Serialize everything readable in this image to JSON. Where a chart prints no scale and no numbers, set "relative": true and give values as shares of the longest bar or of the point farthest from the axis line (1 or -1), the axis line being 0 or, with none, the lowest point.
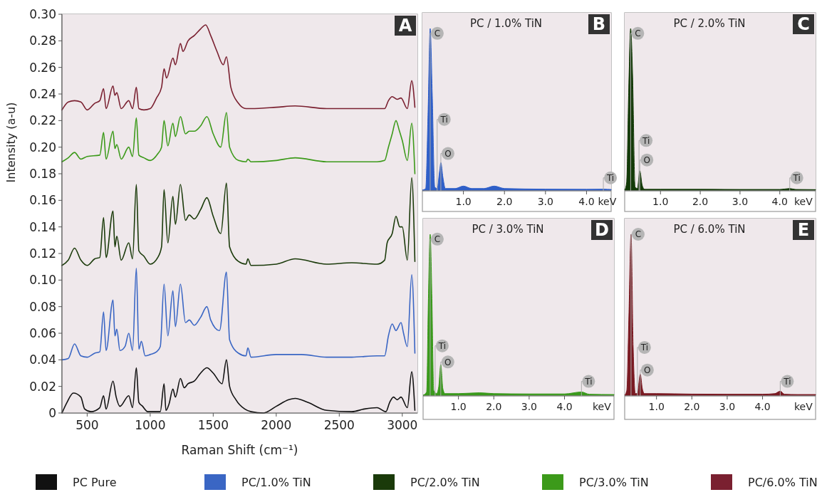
{
  "chart_data": [
    {
      "type": "line",
      "xlabel": "Raman Shift (cm⁻¹)",
      "ylabel": "Intensity (a-u)",
      "xlim": [
        300,
        3120
      ],
      "ylim": [
        0,
        0.3
      ],
      "xticks": [
        500,
        1000,
        1500,
        2000,
        2500,
        3000
      ],
      "yticks": [
        0,
        0.02,
        0.04,
        0.06,
        0.08,
        {
          "value": 0.1,
          "label": "0.10"
        },
        0.12,
        0.14,
        0.16,
        0.18,
        {
          "value": 0.2,
          "label": "0.20"
        },
        0.22,
        0.24,
        0.26,
        0.28,
        {
          "value": 0.3,
          "label": "0.30"
        }
      ],
      "legend": "bottom",
      "annotations": [
        "A"
      ],
      "series": [
        {
          "name": "PC Pure",
          "color": "#111111",
          "x": [
            300,
            340,
            390,
            450,
            480,
            530,
            600,
            630,
            650,
            705,
            730,
            760,
            830,
            860,
            890,
            910,
            940,
            980,
            1080,
            1110,
            1125,
            1150,
            1180,
            1200,
            1240,
            1270,
            1300,
            1350,
            1400,
            1450,
            1500,
            1570,
            1605,
            1630,
            1680,
            1750,
            1800,
            1900,
            2000,
            2100,
            2150,
            2250,
            2400,
            2600,
            2700,
            2800,
            2870,
            2900,
            2930,
            2960,
            2990,
            3040,
            3075,
            3100
          ],
          "values": [
            0,
            0.008,
            0.015,
            0.012,
            0.003,
            0.001,
            0.004,
            0.013,
            0.003,
            0.024,
            0.012,
            0.005,
            0.013,
            0.004,
            0.034,
            0.008,
            0.005,
            0.001,
            0.001,
            0.022,
            0.002,
            0.007,
            0.018,
            0.012,
            0.026,
            0.019,
            0.022,
            0.024,
            0.03,
            0.034,
            0.03,
            0.022,
            0.04,
            0.02,
            0.01,
            0.003,
            0.001,
            0,
            0.005,
            0.01,
            0.011,
            0.008,
            0.002,
            0.001,
            0.003,
            0.004,
            0.001,
            0.008,
            0.012,
            0.01,
            0.012,
            0.004,
            0.031,
            0.002
          ]
        },
        {
          "name": "PC/1.0% TiN",
          "color": "#3a66c4",
          "x": [
            300,
            350,
            400,
            450,
            500,
            560,
            600,
            630,
            650,
            705,
            720,
            735,
            760,
            800,
            830,
            860,
            890,
            910,
            930,
            960,
            1000,
            1050,
            1080,
            1110,
            1140,
            1180,
            1200,
            1240,
            1280,
            1310,
            1350,
            1400,
            1450,
            1480,
            1550,
            1605,
            1630,
            1700,
            1760,
            1775,
            1800,
            2000,
            2200,
            2400,
            2600,
            2800,
            2860,
            2890,
            2920,
            2950,
            2990,
            3010,
            3040,
            3075,
            3100
          ],
          "values": [
            0.04,
            0.041,
            0.052,
            0.043,
            0.042,
            0.045,
            0.046,
            0.076,
            0.047,
            0.085,
            0.058,
            0.063,
            0.047,
            0.05,
            0.06,
            0.047,
            0.109,
            0.048,
            0.054,
            0.043,
            0.044,
            0.046,
            0.05,
            0.097,
            0.058,
            0.092,
            0.065,
            0.097,
            0.068,
            0.07,
            0.066,
            0.072,
            0.08,
            0.07,
            0.062,
            0.106,
            0.055,
            0.045,
            0.043,
            0.049,
            0.042,
            0.044,
            0.044,
            0.042,
            0.042,
            0.043,
            0.043,
            0.058,
            0.067,
            0.062,
            0.068,
            0.06,
            0.05,
            0.104,
            0.045
          ]
        },
        {
          "name": "PC/2.0% TiN",
          "color": "#1a3a0a",
          "x": [
            300,
            350,
            400,
            450,
            500,
            560,
            600,
            630,
            650,
            705,
            720,
            735,
            770,
            830,
            860,
            890,
            910,
            950,
            1000,
            1060,
            1090,
            1110,
            1140,
            1180,
            1200,
            1240,
            1280,
            1310,
            1350,
            1400,
            1450,
            1500,
            1560,
            1605,
            1630,
            1700,
            1760,
            1775,
            1800,
            2000,
            2150,
            2400,
            2600,
            2800,
            2860,
            2880,
            2920,
            2950,
            2980,
            3000,
            3040,
            3075,
            3100
          ],
          "values": [
            0.111,
            0.115,
            0.124,
            0.115,
            0.111,
            0.116,
            0.117,
            0.147,
            0.117,
            0.152,
            0.125,
            0.133,
            0.115,
            0.128,
            0.116,
            0.172,
            0.122,
            0.118,
            0.112,
            0.117,
            0.125,
            0.168,
            0.128,
            0.163,
            0.142,
            0.172,
            0.145,
            0.149,
            0.146,
            0.153,
            0.162,
            0.148,
            0.135,
            0.173,
            0.125,
            0.114,
            0.112,
            0.116,
            0.111,
            0.112,
            0.116,
            0.112,
            0.113,
            0.112,
            0.115,
            0.128,
            0.135,
            0.148,
            0.14,
            0.14,
            0.115,
            0.177,
            0.114
          ]
        },
        {
          "name": "PC/3.0% TiN",
          "color": "#3c9a1a",
          "x": [
            300,
            350,
            400,
            450,
            500,
            600,
            630,
            650,
            705,
            720,
            735,
            770,
            830,
            860,
            890,
            910,
            950,
            1000,
            1060,
            1090,
            1110,
            1140,
            1180,
            1200,
            1240,
            1280,
            1310,
            1350,
            1400,
            1450,
            1500,
            1560,
            1605,
            1630,
            1700,
            1760,
            1775,
            1800,
            2000,
            2150,
            2400,
            2600,
            2800,
            2860,
            2890,
            2920,
            2950,
            2975,
            3000,
            3040,
            3075,
            3100
          ],
          "values": [
            0.189,
            0.192,
            0.196,
            0.191,
            0.193,
            0.194,
            0.211,
            0.191,
            0.212,
            0.199,
            0.202,
            0.191,
            0.2,
            0.193,
            0.222,
            0.194,
            0.192,
            0.19,
            0.195,
            0.2,
            0.22,
            0.201,
            0.218,
            0.208,
            0.223,
            0.21,
            0.212,
            0.212,
            0.216,
            0.223,
            0.21,
            0.2,
            0.226,
            0.2,
            0.19,
            0.189,
            0.191,
            0.189,
            0.19,
            0.192,
            0.189,
            0.189,
            0.189,
            0.19,
            0.2,
            0.21,
            0.22,
            0.213,
            0.205,
            0.19,
            0.218,
            0.18
          ]
        },
        {
          "name": "PC/6.0% TiN",
          "color": "#7a2030",
          "x": [
            300,
            350,
            400,
            450,
            500,
            560,
            600,
            630,
            650,
            705,
            720,
            735,
            770,
            830,
            860,
            890,
            910,
            950,
            1000,
            1050,
            1090,
            1110,
            1130,
            1180,
            1200,
            1240,
            1260,
            1300,
            1350,
            1400,
            1440,
            1480,
            1530,
            1580,
            1605,
            1640,
            1700,
            1760,
            1800,
            2000,
            2150,
            2400,
            2600,
            2800,
            2860,
            2890,
            2920,
            2960,
            2990,
            3040,
            3075,
            3100
          ],
          "values": [
            0.228,
            0.234,
            0.235,
            0.234,
            0.228,
            0.233,
            0.235,
            0.244,
            0.229,
            0.246,
            0.239,
            0.241,
            0.229,
            0.235,
            0.229,
            0.245,
            0.229,
            0.228,
            0.229,
            0.237,
            0.245,
            0.259,
            0.252,
            0.267,
            0.262,
            0.278,
            0.272,
            0.28,
            0.284,
            0.289,
            0.292,
            0.284,
            0.272,
            0.262,
            0.268,
            0.245,
            0.233,
            0.229,
            0.229,
            0.23,
            0.231,
            0.229,
            0.229,
            0.229,
            0.229,
            0.235,
            0.238,
            0.236,
            0.237,
            0.229,
            0.25,
            0.23
          ]
        }
      ]
    },
    {
      "type": "area",
      "title": "PC / 1.0% TiN",
      "xlabel": "keV",
      "relative": true,
      "xlim": [
        0,
        4.6
      ],
      "xticks": [
        {
          "value": 1,
          "label": "1.0"
        },
        {
          "value": 2,
          "label": "2.0"
        },
        {
          "value": 3,
          "label": "3.0"
        },
        {
          "value": 4,
          "label": "4.0"
        }
      ],
      "annotations": [
        "B"
      ],
      "ref_lines": [
        {
          "axis": "x",
          "value": 0.19,
          "label": "C"
        },
        {
          "axis": "x",
          "value": 0.36,
          "label": "Ti"
        },
        {
          "axis": "x",
          "value": 0.45,
          "label": "O"
        },
        {
          "axis": "x",
          "value": 4.41,
          "label": "Ti"
        }
      ],
      "series": [
        {
          "color": "#2f5fc8",
          "x": [
            0,
            0.08,
            0.14,
            0.19,
            0.24,
            0.3,
            0.36,
            0.42,
            0.45,
            0.5,
            0.56,
            0.8,
            1.0,
            1.2,
            1.5,
            1.75,
            2.0,
            3.0,
            4.0,
            4.41,
            4.6
          ],
          "values": [
            0,
            0.01,
            0.5,
            1.0,
            0.6,
            0.02,
            0.01,
            0.12,
            0.17,
            0.08,
            0.01,
            0.01,
            0.025,
            0.01,
            0.01,
            0.025,
            0.01,
            0.006,
            0.005,
            0.006,
            0.004
          ]
        }
      ]
    },
    {
      "type": "area",
      "title": "PC / 2.0% TiN",
      "xlabel": "keV",
      "relative": true,
      "xlim": [
        0.1,
        4.9
      ],
      "xticks": [
        {
          "value": 1,
          "label": "1.0"
        },
        {
          "value": 2,
          "label": "2.0"
        },
        {
          "value": 3,
          "label": "3.0"
        },
        {
          "value": 4,
          "label": "4.0"
        }
      ],
      "annotations": [
        "C"
      ],
      "ref_lines": [
        {
          "axis": "x",
          "value": 0.25,
          "label": "C"
        },
        {
          "axis": "x",
          "value": 0.46,
          "label": "Ti"
        },
        {
          "axis": "x",
          "value": 0.48,
          "label": "O"
        },
        {
          "axis": "x",
          "value": 4.25,
          "label": "Ti"
        }
      ],
      "series": [
        {
          "color": "#133a08",
          "x": [
            0.1,
            0.15,
            0.2,
            0.25,
            0.3,
            0.36,
            0.42,
            0.48,
            0.54,
            0.6,
            1.0,
            2.0,
            3.0,
            4.0,
            4.25,
            4.4,
            4.9
          ],
          "values": [
            0,
            0.05,
            0.6,
            1.0,
            0.7,
            0.02,
            0.01,
            0.12,
            0.03,
            0.005,
            0.005,
            0.005,
            0.004,
            0.004,
            0.01,
            0.004,
            0.003
          ]
        }
      ]
    },
    {
      "type": "area",
      "title": "PC / 3.0% TiN",
      "xlabel": "keV",
      "relative": true,
      "xlim": [
        0,
        5.4
      ],
      "xticks": [
        {
          "value": 1,
          "label": "1.0"
        },
        {
          "value": 2,
          "label": "2.0"
        },
        {
          "value": 3,
          "label": "3.0"
        },
        {
          "value": 4,
          "label": "4.0"
        }
      ],
      "annotations": [
        "D"
      ],
      "ref_lines": [
        {
          "axis": "x",
          "value": 0.2,
          "label": "C"
        },
        {
          "axis": "x",
          "value": 0.34,
          "label": "Ti"
        },
        {
          "axis": "x",
          "value": 0.5,
          "label": "O"
        },
        {
          "axis": "x",
          "value": 4.48,
          "label": "Ti"
        }
      ],
      "series": [
        {
          "color": "#3a9a1c",
          "x": [
            0,
            0.1,
            0.15,
            0.2,
            0.25,
            0.3,
            0.38,
            0.44,
            0.5,
            0.56,
            0.62,
            1.0,
            1.6,
            2.0,
            3.0,
            4.0,
            4.48,
            4.7,
            5.4
          ],
          "values": [
            0,
            0.02,
            0.6,
            1.0,
            0.6,
            0.03,
            0.01,
            0.05,
            0.19,
            0.04,
            0.01,
            0.01,
            0.015,
            0.01,
            0.008,
            0.008,
            0.02,
            0.006,
            0.004
          ]
        }
      ]
    },
    {
      "type": "area",
      "title": "PC / 6.0% TiN",
      "xlabel": "keV",
      "relative": true,
      "xlim": [
        0.1,
        5.5
      ],
      "xticks": [
        {
          "value": 1,
          "label": "1.0"
        },
        {
          "value": 2,
          "label": "2.0"
        },
        {
          "value": 3,
          "label": "3.0"
        },
        {
          "value": 4,
          "label": "4.0"
        }
      ],
      "annotations": [
        "E"
      ],
      "ref_lines": [
        {
          "axis": "x",
          "value": 0.28,
          "label": "C"
        },
        {
          "axis": "x",
          "value": 0.46,
          "label": "Ti"
        },
        {
          "axis": "x",
          "value": 0.54,
          "label": "O"
        },
        {
          "axis": "x",
          "value": 4.5,
          "label": "Ti"
        }
      ],
      "series": [
        {
          "color": "#7a1a22",
          "x": [
            0.1,
            0.16,
            0.22,
            0.28,
            0.34,
            0.4,
            0.46,
            0.54,
            0.6,
            0.66,
            1.0,
            2.0,
            3.0,
            4.0,
            4.35,
            4.5,
            4.62,
            5.0,
            5.5
          ],
          "values": [
            0,
            0.03,
            0.5,
            1.0,
            0.3,
            0.01,
            0.01,
            0.13,
            0.04,
            0.01,
            0.01,
            0.007,
            0.006,
            0.006,
            0.01,
            0.025,
            0.006,
            0.004,
            0.004
          ]
        }
      ]
    }
  ]
}
